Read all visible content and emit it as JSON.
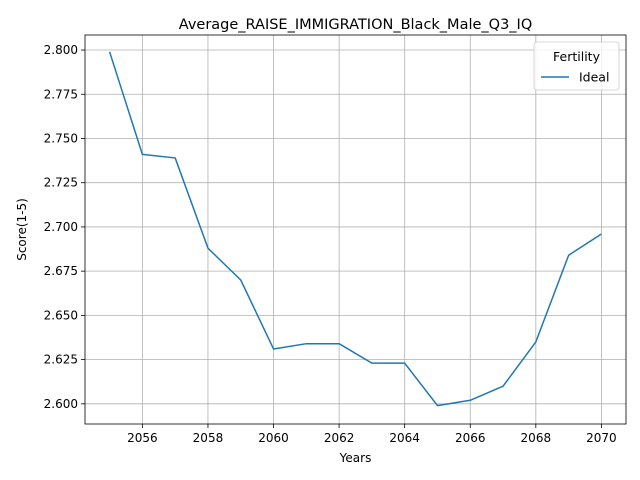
{
  "chart_data": {
    "type": "line",
    "title": "Average_RAISE_IMMIGRATION_Black_Male_Q3_IQ",
    "xlabel": "Years",
    "ylabel": "Score(1-5)",
    "xlim": [
      2054.25,
      2070.75
    ],
    "ylim": [
      2.5886,
      2.8085
    ],
    "x_ticks": [
      2056,
      2058,
      2060,
      2062,
      2064,
      2066,
      2068,
      2070
    ],
    "y_ticks": [
      2.6,
      2.625,
      2.65,
      2.675,
      2.7,
      2.725,
      2.75,
      2.775,
      2.8
    ],
    "grid": true,
    "legend": {
      "title": "Fertility",
      "position": "top-right"
    },
    "series": [
      {
        "name": "Ideal",
        "color": "#1f77b4",
        "x": [
          2055,
          2056,
          2057,
          2058,
          2059,
          2060,
          2061,
          2062,
          2063,
          2064,
          2065,
          2066,
          2067,
          2068,
          2069,
          2070
        ],
        "y": [
          2.799,
          2.741,
          2.739,
          2.688,
          2.67,
          2.631,
          2.634,
          2.634,
          2.623,
          2.623,
          2.599,
          2.602,
          2.61,
          2.635,
          2.684,
          2.696
        ]
      }
    ]
  }
}
